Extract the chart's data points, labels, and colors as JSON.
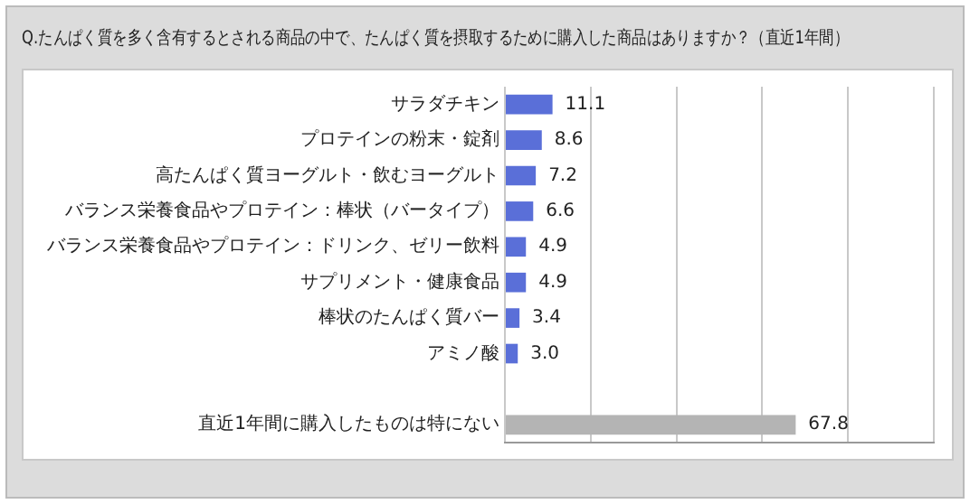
{
  "chart_data": {
    "type": "bar",
    "orientation": "horizontal",
    "title": "Q.たんぱく質を多く含有するとされる商品の中で、たんぱく質を摂取するために購入した商品はありますか？（直近1年間）",
    "categories": [
      "サラダチキン",
      "プロテインの粉末・錠剤",
      "高たんぱく質ヨーグルト・飲むヨーグルト",
      "バランス栄養食品やプロテイン：棒状（バータイプ）",
      "バランス栄養食品やプロテイン：ドリンク、ゼリー飲料",
      "サプリメント・健康食品",
      "棒状のたんぱく質バー",
      "アミノ酸",
      null,
      "直近1年間に購入したものは特にない"
    ],
    "values": [
      11.1,
      8.6,
      7.2,
      6.6,
      4.9,
      4.9,
      3.4,
      3.0,
      null,
      67.8
    ],
    "colors": [
      "#5a6fd8",
      "#5a6fd8",
      "#5a6fd8",
      "#5a6fd8",
      "#5a6fd8",
      "#5a6fd8",
      "#5a6fd8",
      "#5a6fd8",
      "#5a6fd8",
      "#b4b4b4"
    ],
    "xlim": [
      0,
      100
    ],
    "xticks": [
      {
        "value": 0,
        "label": null
      },
      {
        "value": 20,
        "label": null
      },
      {
        "value": 40,
        "label": null
      },
      {
        "value": 60,
        "label": null
      },
      {
        "value": 80,
        "label": null
      },
      {
        "value": 100,
        "label": null
      }
    ],
    "value_labels": [
      "11.1",
      "8.6",
      "7.2",
      "6.6",
      "4.9",
      "4.9",
      "3.4",
      "3.0",
      null,
      "67.8"
    ],
    "tick_labels": "y",
    "grid": "x"
  }
}
